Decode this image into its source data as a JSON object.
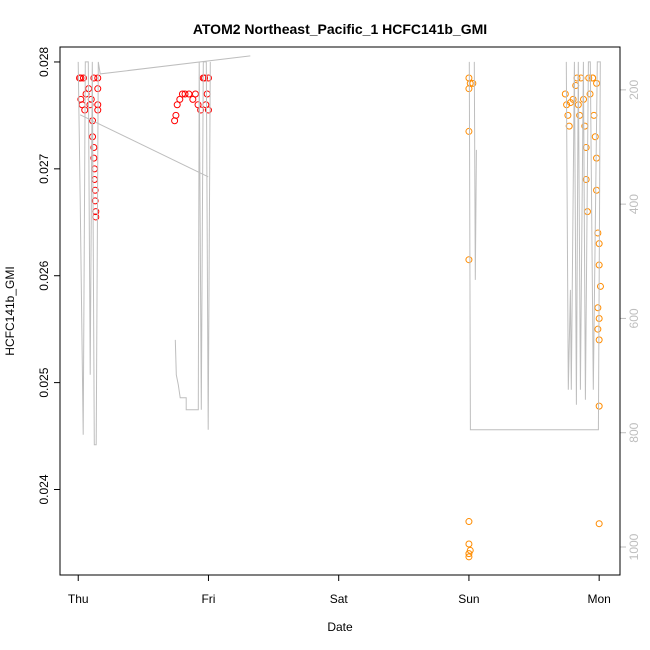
{
  "chart_data": {
    "type": "scatter",
    "title": "ATOM2 Northeast_Pacific_1 HCFC141b_GMI",
    "x_label": "Date",
    "y_label": "HCFC141b_GMI",
    "xlim": [
      -0.14,
      4.16
    ],
    "xticks": [
      {
        "value": 0,
        "label": "Thu"
      },
      {
        "value": 1,
        "label": "Fri"
      },
      {
        "value": 2,
        "label": "Sat"
      },
      {
        "value": 3,
        "label": "Sun"
      },
      {
        "value": 4,
        "label": "Mon"
      }
    ],
    "ylim": [
      0.0232,
      0.02814
    ],
    "yticks": [
      0.024,
      0.025,
      0.026,
      0.027,
      0.028
    ],
    "y2lim": [
      1049,
      125
    ],
    "y2ticks": [
      200,
      400,
      600,
      800,
      1000
    ],
    "series": [
      {
        "color": "#ff0000",
        "mode": "points",
        "x": [
          0.01,
          0.02,
          0.04,
          0.02,
          0.03,
          0.05,
          0.06,
          0.08,
          0.09,
          0.1,
          0.11,
          0.11,
          0.12,
          0.12,
          0.125,
          0.125,
          0.13,
          0.13,
          0.135,
          0.135,
          0.15,
          0.15,
          0.15,
          0.15,
          0.12,
          0.74,
          0.75,
          0.76,
          0.78,
          0.8,
          0.82,
          0.85,
          0.88,
          0.9,
          0.92,
          0.94,
          0.96,
          0.97,
          0.98,
          0.99,
          1.0,
          1.0
        ],
        "values": [
          0.02785,
          0.02785,
          0.02785,
          0.02765,
          0.0276,
          0.02755,
          0.0277,
          0.02775,
          0.0276,
          0.02765,
          0.02745,
          0.0273,
          0.0272,
          0.0271,
          0.027,
          0.0269,
          0.0268,
          0.0267,
          0.0266,
          0.02655,
          0.02785,
          0.02775,
          0.0276,
          0.02755,
          0.02785,
          0.02745,
          0.0275,
          0.0276,
          0.02765,
          0.0277,
          0.0277,
          0.0277,
          0.02765,
          0.0277,
          0.0276,
          0.02755,
          0.02785,
          0.02785,
          0.0276,
          0.0277,
          0.02755,
          0.02785
        ]
      },
      {
        "color": "#ff8c00",
        "mode": "points",
        "x": [
          3.0,
          3.01,
          3.03,
          3.0,
          3.0,
          3.0,
          3.0,
          3.0,
          3.0,
          3.0,
          3.01,
          3.74,
          3.75,
          3.76,
          3.77,
          3.78,
          3.8,
          3.82,
          3.83,
          3.84,
          3.85,
          3.86,
          3.88,
          3.89,
          3.9,
          3.9,
          3.91,
          3.92,
          3.93,
          3.95,
          3.96,
          3.97,
          3.98,
          3.98,
          3.99,
          4.0,
          4.0,
          4.01,
          3.99,
          4.0,
          3.99,
          4.0,
          4.0,
          4.0,
          3.95,
          3.98
        ],
        "values": [
          0.02785,
          0.0278,
          0.0278,
          0.02775,
          0.02735,
          0.02615,
          0.0237,
          0.02349,
          0.0234,
          0.02337,
          0.02343,
          0.0277,
          0.0276,
          0.0275,
          0.0274,
          0.02762,
          0.02765,
          0.02778,
          0.02785,
          0.0276,
          0.0275,
          0.02785,
          0.02765,
          0.0274,
          0.0272,
          0.0269,
          0.0266,
          0.02785,
          0.0277,
          0.02785,
          0.0275,
          0.0273,
          0.0271,
          0.0268,
          0.0264,
          0.0263,
          0.0261,
          0.0259,
          0.0257,
          0.0256,
          0.0255,
          0.0254,
          0.02478,
          0.02368,
          0.02785,
          0.0278
        ]
      },
      {
        "color": "#bebebe",
        "mode": "line",
        "axis": "y2",
        "x": [
          0,
          0.015,
          0.038,
          0.054,
          0.077,
          0.092,
          0.108,
          0.123,
          0.138,
          0.154,
          0.169,
          1.321,
          null,
          0.015,
          0.998,
          null,
          0.745,
          0.753,
          0.768,
          0.783,
          0.829,
          0.829,
          0.922,
          0.929,
          0.945,
          0.96,
          0.983,
          0.998,
          1.014,
          null,
          3.003,
          3.011,
          3.994,
          4.009,
          3.986,
          3.955,
          3.932,
          3.917,
          3.894,
          3.879,
          3.856,
          3.84,
          3.825,
          3.81,
          3.786,
          3.779,
          3.763,
          3.748,
          null,
          3.041,
          3.049,
          3.057
        ],
        "values": [
          151,
          392.5,
          803.7,
          151,
          151,
          698.7,
          151,
          821.2,
          821.2,
          151,
          172,
          140.5,
          null,
          243.7,
          352.2,
          null,
          637.5,
          698.7,
          716.2,
          738.9,
          738.9,
          759.9,
          759.9,
          151,
          759.9,
          151,
          151,
          794.9,
          151,
          null,
          151,
          794.9,
          794.9,
          151,
          151,
          724.9,
          151,
          151,
          742.4,
          151,
          724.9,
          151,
          751.2,
          151,
          724.9,
          550,
          724.9,
          151,
          null,
          151,
          532.5,
          305
        ]
      }
    ]
  }
}
